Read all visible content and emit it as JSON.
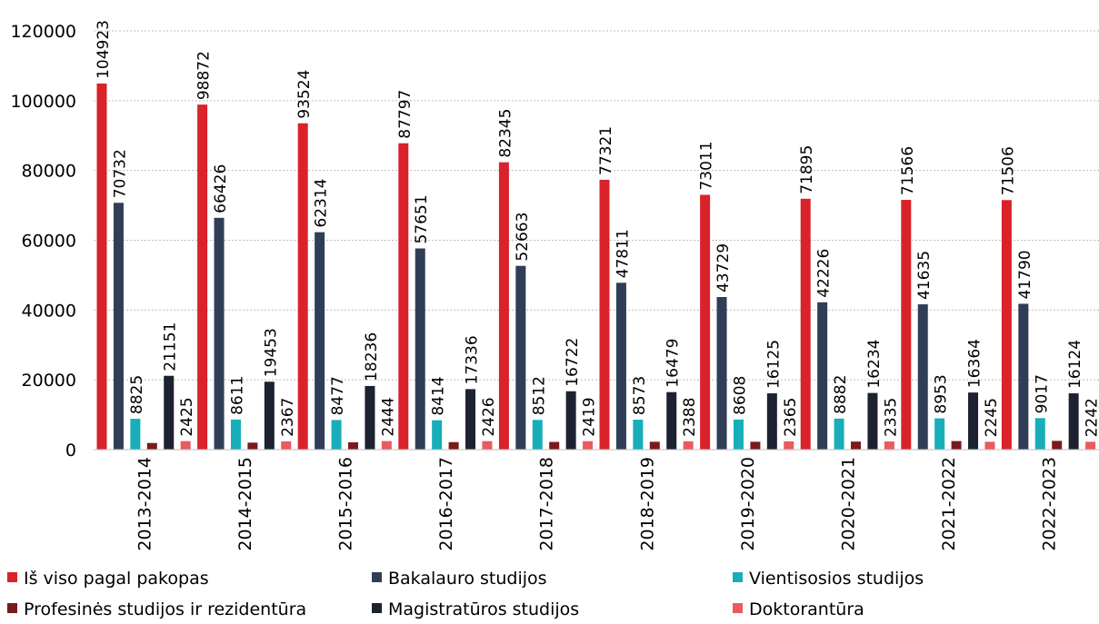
{
  "chart_data": {
    "type": "bar",
    "title": "",
    "xlabel": "",
    "ylabel": "",
    "ylim": [
      0,
      120000
    ],
    "yticks": [
      0,
      20000,
      40000,
      60000,
      80000,
      100000,
      120000
    ],
    "grid": "horizontal-dashed",
    "legend_position": "bottom",
    "categories": [
      "2013-2014",
      "2014-2015",
      "2015-2016",
      "2016-2017",
      "2017-2018",
      "2018-2019",
      "2019-2020",
      "2020-2021",
      "2021-2022",
      "2022-2023"
    ],
    "series": [
      {
        "name": "Iš viso pagal pakopas",
        "color": "#d9222a",
        "labeled": true,
        "values": [
          104923,
          98872,
          93524,
          87797,
          82345,
          77321,
          73011,
          71895,
          71566,
          71506
        ]
      },
      {
        "name": "Bakalauro studijos",
        "color": "#2f3e56",
        "labeled": true,
        "values": [
          70732,
          66426,
          62314,
          57651,
          52663,
          47811,
          43729,
          42226,
          41635,
          41790
        ]
      },
      {
        "name": "Vientisosios studijos",
        "color": "#17aeb9",
        "labeled": true,
        "values": [
          8825,
          8611,
          8477,
          8414,
          8512,
          8573,
          8608,
          8882,
          8953,
          9017
        ]
      },
      {
        "name": "Profesinės studijos ir rezidentūra",
        "color": "#7b1a1d",
        "labeled": false,
        "values": [
          1900,
          2000,
          2100,
          2150,
          2200,
          2250,
          2250,
          2300,
          2450,
          2500
        ]
      },
      {
        "name": "Magistratūros studijos",
        "color": "#1c2230",
        "labeled": true,
        "values": [
          21151,
          19453,
          18236,
          17336,
          16722,
          16479,
          16125,
          16234,
          16364,
          16124
        ]
      },
      {
        "name": "Doktorantūra",
        "color": "#ea5a60",
        "labeled": true,
        "values": [
          2425,
          2367,
          2444,
          2426,
          2419,
          2388,
          2365,
          2335,
          2245,
          2242
        ]
      }
    ]
  }
}
